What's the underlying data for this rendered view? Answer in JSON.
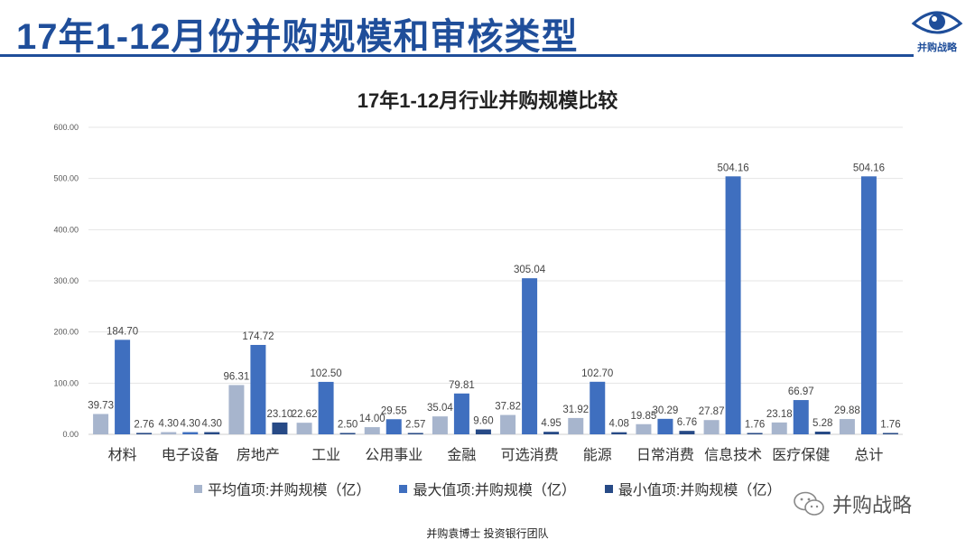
{
  "header": {
    "title": "17年1-12月份并购规模和审核类型",
    "logo_text": "并购战略",
    "logo_icon": "eye-icon"
  },
  "colors": {
    "brand": "#1f4e9a",
    "avg": "#a7b5cd",
    "max": "#3f6fbf",
    "min": "#274a86"
  },
  "chart_data": {
    "type": "bar",
    "title": "17年1-12月行业并购规模比较",
    "xlabel": "",
    "ylabel": "",
    "ylim": [
      0,
      600
    ],
    "yticks": [
      "0.00",
      "100.00",
      "200.00",
      "300.00",
      "400.00",
      "500.00",
      "600.00"
    ],
    "grid": true,
    "legend_position": "bottom",
    "categories": [
      "材料",
      "电子设备",
      "房地产",
      "工业",
      "公用事业",
      "金融",
      "可选消费",
      "能源",
      "日常消费",
      "信息技术",
      "医疗保健",
      "总计"
    ],
    "series": [
      {
        "name": "平均值项:并购规模（亿）",
        "values": [
          39.73,
          4.3,
          96.31,
          22.62,
          14.0,
          35.04,
          37.82,
          31.92,
          19.85,
          27.87,
          23.18,
          29.88
        ],
        "labels": [
          "39.73",
          "4.30",
          "96.31",
          "22.62",
          "14.00",
          "35.04",
          "37.82",
          "31.92",
          "19.85",
          "27.87",
          "23.18",
          "29.88"
        ]
      },
      {
        "name": "最大值项:并购规模（亿）",
        "values": [
          184.7,
          4.3,
          174.72,
          102.5,
          29.55,
          79.81,
          305.04,
          102.7,
          30.29,
          504.16,
          66.97,
          504.16
        ],
        "labels": [
          "184.70",
          "4.30",
          "174.72",
          "102.50",
          "29.55",
          "79.81",
          "305.04",
          "102.70",
          "30.29",
          "504.16",
          "66.97",
          "504.16"
        ]
      },
      {
        "name": "最小值项:并购规模（亿）",
        "values": [
          2.76,
          4.3,
          23.1,
          2.5,
          2.57,
          9.6,
          4.95,
          4.08,
          6.76,
          1.76,
          5.28,
          1.76
        ],
        "labels": [
          "2.76",
          "4.30",
          "23.10",
          "2.50",
          "2.57",
          "9.60",
          "4.95",
          "4.08",
          "6.76",
          "1.76",
          "5.28",
          "1.76"
        ]
      }
    ]
  },
  "footer": {
    "text": "并购袁博士 投资银行团队"
  },
  "watermark": {
    "text": "并购战略",
    "icon": "wechat-icon"
  }
}
